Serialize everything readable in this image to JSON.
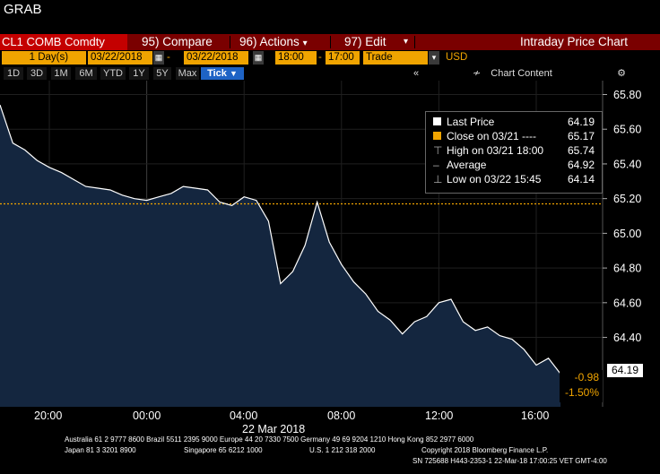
{
  "app_title": "GRAB",
  "toolbar": {
    "ticker": "CL1 COMB Comdty",
    "compare_num": "95)",
    "compare_label": "Compare",
    "actions_num": "96)",
    "actions_label": "Actions",
    "edit_num": "97)",
    "edit_label": "Edit",
    "chart_title": "Intraday Price Chart"
  },
  "settings": {
    "period_value": "1",
    "period_unit": "Day(s)",
    "start_date": "03/22/2018",
    "end_date": "03/22/2018",
    "start_time": "18:00",
    "end_time": "17:00",
    "event": "Trade",
    "currency": "USD"
  },
  "range_buttons": [
    "1D",
    "3D",
    "1M",
    "6M",
    "YTD",
    "1Y",
    "5Y",
    "Max"
  ],
  "tick_button": "Tick",
  "chart_content_label": "Chart Content",
  "legend": {
    "rows": [
      {
        "label": "Last Price",
        "value": "64.19"
      },
      {
        "label": "Close on 03/21 ----",
        "value": "65.17"
      },
      {
        "label": "High on 03/21 18:00",
        "value": "65.74"
      },
      {
        "label": "Average",
        "value": "64.92"
      },
      {
        "label": "Low on 03/22 15:45",
        "value": "64.14"
      }
    ]
  },
  "last_price_tag": "64.19",
  "change": {
    "abs": "-0.98",
    "pct": "-1.50%"
  },
  "date_label": "22 Mar 2018",
  "footer": {
    "line1": "Australia 61 2 9777 8600 Brazil 5511 2395 9000 Europe 44 20 7330 7500 Germany 49 69 9204 1210 Hong Kong 852 2977 6000",
    "line2a": "Japan 81 3 3201 8900",
    "line2b": "Singapore 65 6212 1000",
    "line2c": "U.S. 1 212 318 2000",
    "line2d": "Copyright 2018 Bloomberg Finance L.P.",
    "line3": "SN 725688 H443-2353-1 22-Mar-18 17:00:25 VET  GMT-4:00"
  },
  "colors": {
    "area_fill": "#14263f",
    "price_line": "#ffffff",
    "close_line": "#f0a400",
    "bar_red": "#7a0000",
    "ticker_red": "#c40000",
    "tick_blue": "#1e63c5"
  },
  "chart_data": {
    "type": "area",
    "title": "Intraday Price Chart",
    "x_tick_labels": [
      "20:00",
      "00:00",
      "04:00",
      "08:00",
      "12:00",
      "16:00"
    ],
    "date_label": "22 Mar 2018",
    "y_tick_labels": [
      "65.80",
      "65.60",
      "65.40",
      "65.20",
      "65.00",
      "64.80",
      "64.60",
      "64.40"
    ],
    "ylim": [
      64.0,
      65.88
    ],
    "close_reference": 65.17,
    "series": [
      {
        "name": "Last Price",
        "x": [
          "18:00",
          "18:30",
          "19:00",
          "19:30",
          "20:00",
          "20:30",
          "21:00",
          "21:30",
          "22:00",
          "22:30",
          "23:00",
          "23:30",
          "00:00",
          "00:30",
          "01:00",
          "01:30",
          "02:00",
          "02:30",
          "03:00",
          "03:30",
          "04:00",
          "04:30",
          "05:00",
          "05:30",
          "06:00",
          "06:30",
          "07:00",
          "07:30",
          "08:00",
          "08:30",
          "09:00",
          "09:30",
          "10:00",
          "10:30",
          "11:00",
          "11:30",
          "12:00",
          "12:30",
          "13:00",
          "13:30",
          "14:00",
          "14:30",
          "15:00",
          "15:30",
          "16:00",
          "16:30",
          "17:00"
        ],
        "values": [
          65.74,
          65.52,
          65.48,
          65.42,
          65.38,
          65.35,
          65.31,
          65.27,
          65.26,
          65.25,
          65.22,
          65.2,
          65.19,
          65.21,
          65.23,
          65.27,
          65.26,
          65.25,
          65.18,
          65.16,
          65.21,
          65.19,
          65.07,
          64.71,
          64.78,
          64.93,
          65.18,
          64.95,
          64.82,
          64.72,
          64.65,
          64.55,
          64.5,
          64.42,
          64.49,
          64.52,
          64.6,
          64.62,
          64.49,
          64.44,
          64.46,
          64.41,
          64.39,
          64.33,
          64.24,
          64.28,
          64.19
        ]
      }
    ],
    "legend_position": "top-right",
    "grid": true
  }
}
